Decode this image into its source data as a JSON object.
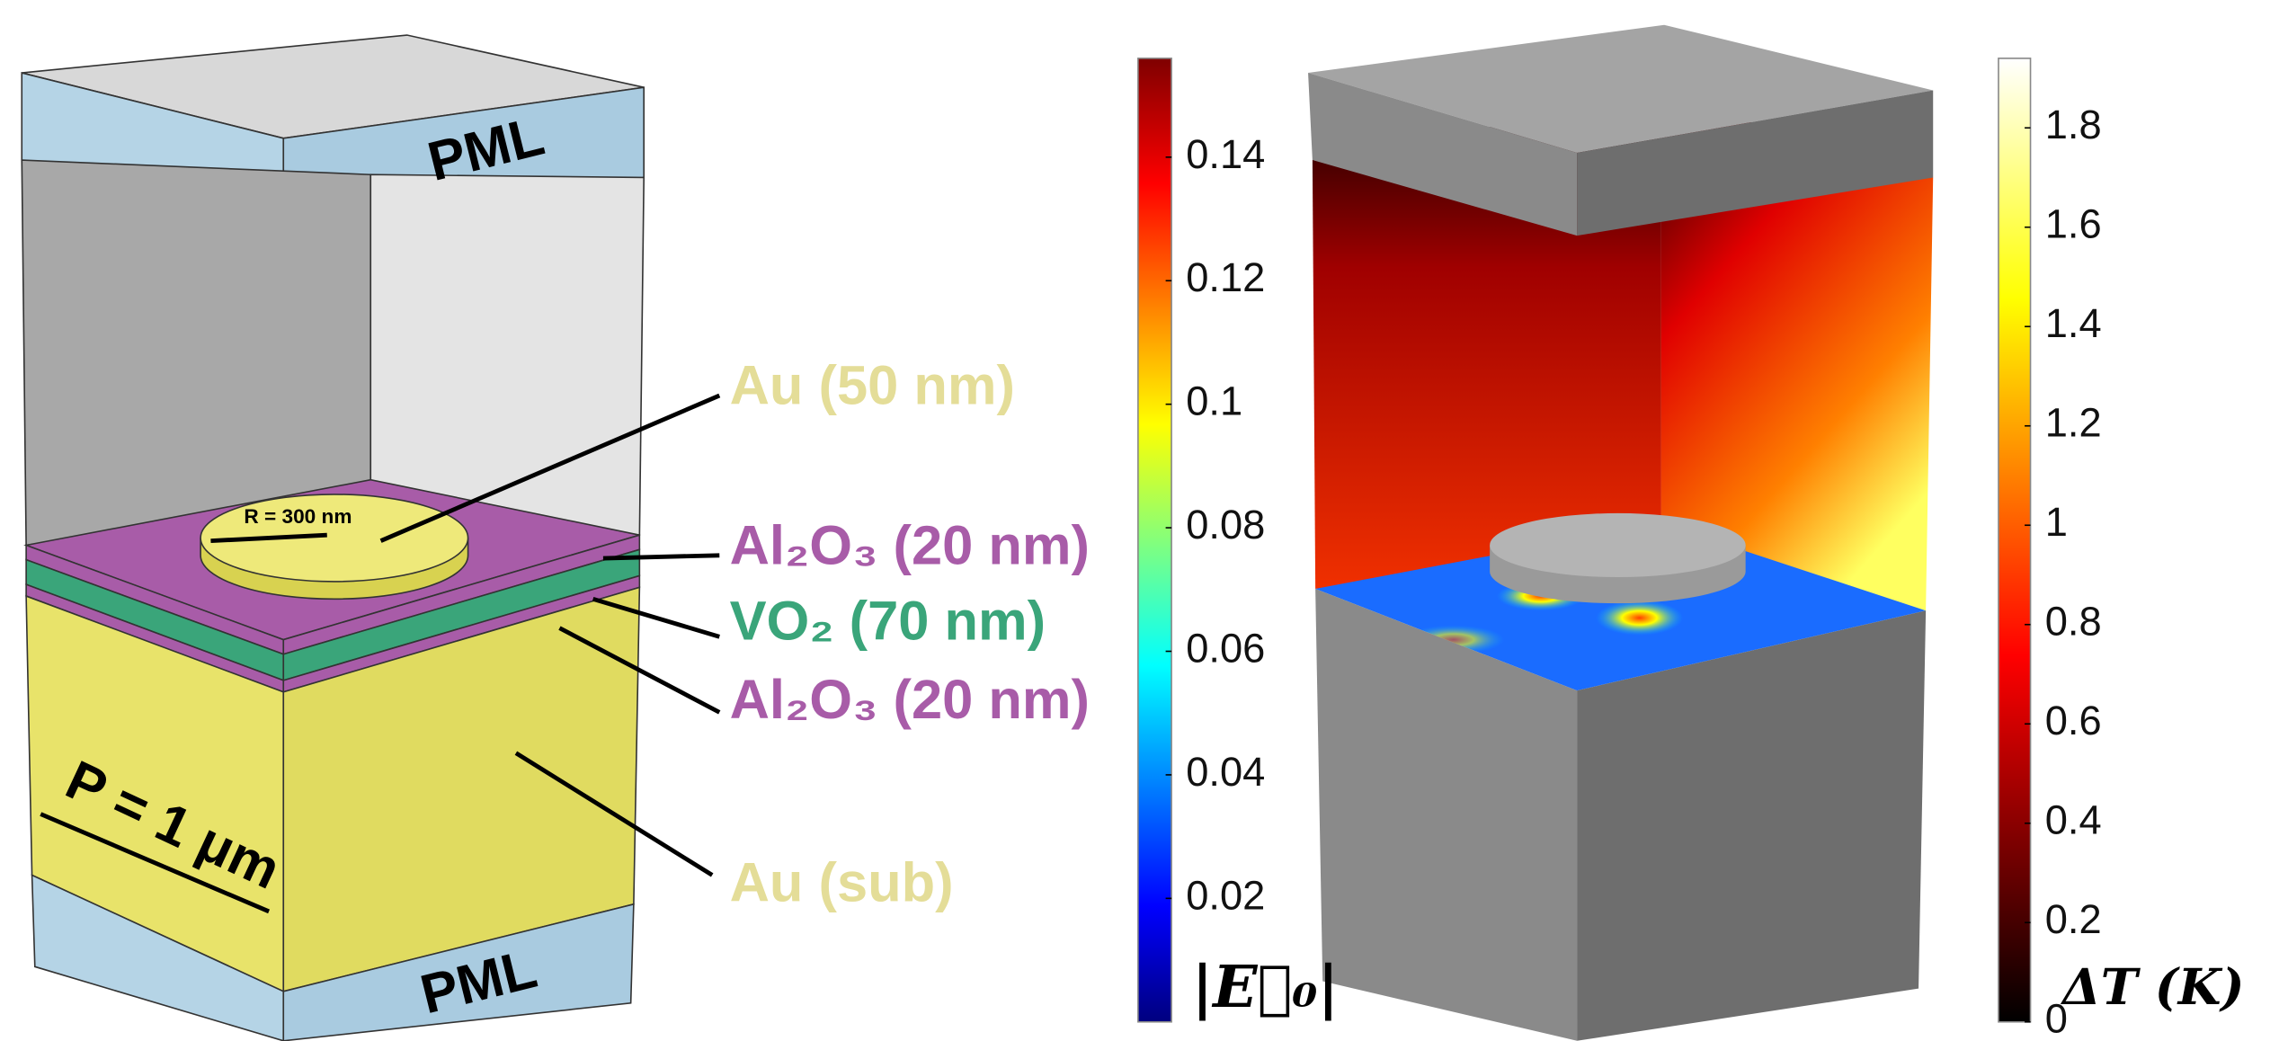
{
  "structure": {
    "pml_top": "PML",
    "pml_bottom": "PML",
    "radius": "R = 300 nm",
    "period": "P = 1 μm"
  },
  "layers": [
    {
      "label": "Au (50 nm)",
      "color": "#e4dd98"
    },
    {
      "label": "Al₂O₃ (20 nm)",
      "color": "#a85ca8"
    },
    {
      "label": "VO₂ (70 nm)",
      "color": "#3aa57a"
    },
    {
      "label": "Al₂O₃ (20 nm)",
      "color": "#a85ca8"
    },
    {
      "label": "Au (sub)",
      "color": "#e4dd98"
    }
  ],
  "colorbars": [
    {
      "label": "|E⃗₀|",
      "colormap": "jet",
      "range": [
        0,
        0.156
      ],
      "ticks": [
        0.02,
        0.04,
        0.06,
        0.08,
        0.1,
        0.12,
        0.14
      ]
    },
    {
      "label": "ΔT (K)",
      "colormap": "hot",
      "range": [
        0,
        1.94
      ],
      "ticks": [
        0,
        0.2,
        0.4,
        0.6,
        0.8,
        1,
        1.2,
        1.4,
        1.6,
        1.8
      ]
    }
  ]
}
